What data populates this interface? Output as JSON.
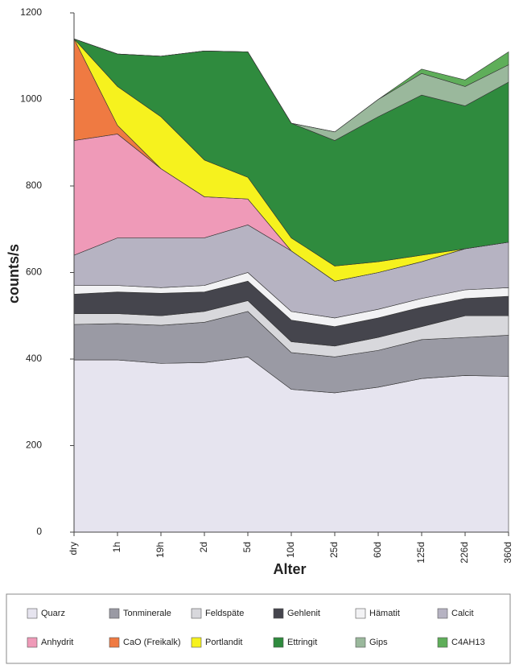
{
  "chart_data": {
    "type": "stacked_area",
    "x_label": "Alter",
    "y_label": "counts/s",
    "categories": [
      "dry",
      "1h",
      "19h",
      "2d",
      "5d",
      "10d",
      "25d",
      "60d",
      "125d",
      "226d",
      "360d"
    ],
    "ylim": [
      0,
      1200
    ],
    "yticks": [
      0,
      200,
      400,
      600,
      800,
      1000,
      1200
    ],
    "series": [
      {
        "name": "Quarz",
        "color": "#e6e4ef",
        "values": [
          398,
          398,
          390,
          392,
          405,
          330,
          322,
          335,
          355,
          362,
          360
        ]
      },
      {
        "name": "Tonminerale",
        "color": "#9a9aa4",
        "values": [
          82,
          84,
          88,
          93,
          105,
          85,
          83,
          85,
          90,
          88,
          95
        ]
      },
      {
        "name": "Feldspäte",
        "color": "#d8d8dc",
        "values": [
          25,
          23,
          22,
          25,
          25,
          25,
          25,
          30,
          30,
          50,
          45
        ]
      },
      {
        "name": "Gehlenit",
        "color": "#45454d",
        "values": [
          45,
          50,
          52,
          45,
          45,
          50,
          45,
          45,
          45,
          40,
          45
        ]
      },
      {
        "name": "Hämatit",
        "color": "#f2f2f4",
        "values": [
          20,
          15,
          13,
          15,
          20,
          20,
          20,
          20,
          20,
          20,
          20
        ]
      },
      {
        "name": "Calcit",
        "color": "#b6b3c2",
        "values": [
          70,
          110,
          115,
          110,
          110,
          140,
          85,
          85,
          85,
          95,
          105
        ]
      },
      {
        "name": "Anhydrit",
        "color": "#ef9ab8",
        "values": [
          265,
          240,
          160,
          95,
          60,
          0,
          0,
          0,
          0,
          0,
          0
        ]
      },
      {
        "name": "CaO (Freikalk)",
        "color": "#ef7a42",
        "values": [
          235,
          20,
          0,
          0,
          0,
          0,
          0,
          0,
          0,
          0,
          0
        ]
      },
      {
        "name": "Portlandit",
        "color": "#f6f21e",
        "values": [
          0,
          90,
          120,
          85,
          50,
          30,
          35,
          25,
          15,
          0,
          0
        ]
      },
      {
        "name": "Ettringit",
        "color": "#2f8b3e",
        "values": [
          0,
          75,
          140,
          252,
          290,
          265,
          290,
          335,
          370,
          330,
          370
        ]
      },
      {
        "name": "Gips",
        "color": "#9ab89c",
        "values": [
          0,
          0,
          0,
          0,
          0,
          0,
          20,
          40,
          50,
          45,
          40
        ]
      },
      {
        "name": "C4AH13",
        "color": "#5fae5a",
        "values": [
          0,
          0,
          0,
          0,
          0,
          0,
          0,
          0,
          10,
          15,
          30
        ]
      }
    ]
  }
}
